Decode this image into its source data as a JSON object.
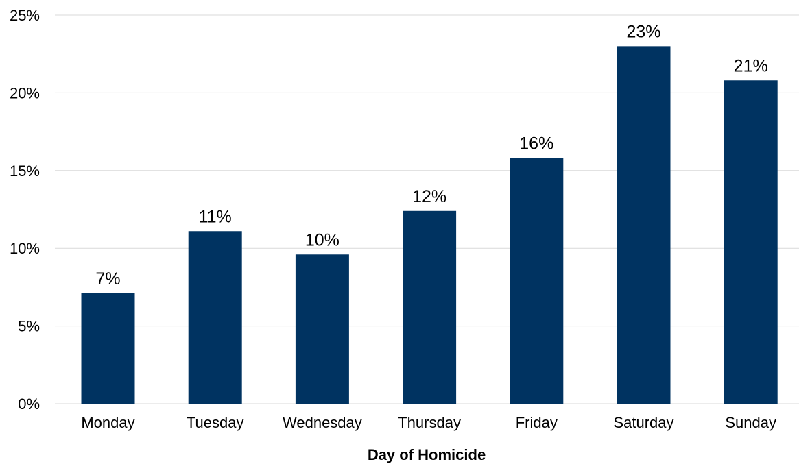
{
  "chart_data": {
    "type": "bar",
    "title": "",
    "xlabel": "Day of Homicide",
    "ylabel": "",
    "categories": [
      "Monday",
      "Tuesday",
      "Wednesday",
      "Thursday",
      "Friday",
      "Saturday",
      "Sunday"
    ],
    "values": [
      7.1,
      11.1,
      9.6,
      12.4,
      15.8,
      23.0,
      20.8
    ],
    "data_labels": [
      "7%",
      "11%",
      "10%",
      "12%",
      "16%",
      "23%",
      "21%"
    ],
    "ylim": [
      0,
      25
    ],
    "yticks": [
      0,
      5,
      10,
      15,
      20,
      25
    ],
    "ytick_labels": [
      "0%",
      "5%",
      "10%",
      "15%",
      "20%",
      "25%"
    ],
    "grid": true,
    "legend": "none",
    "bar_color": "#003361",
    "grid_color": "#d9d9d9"
  }
}
